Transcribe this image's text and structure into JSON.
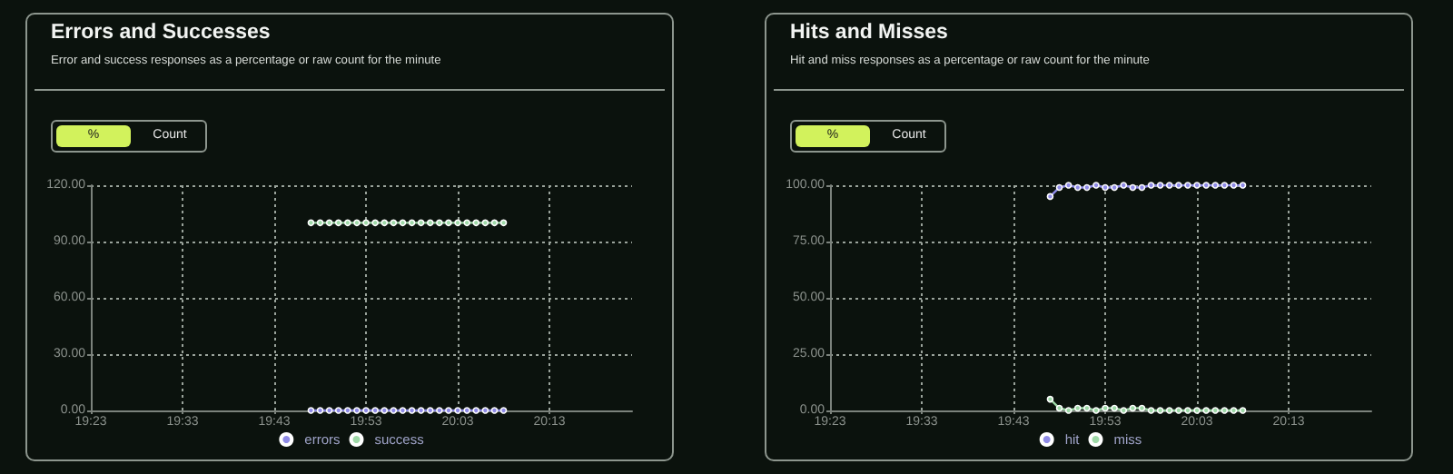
{
  "chart_data": [
    {
      "type": "line",
      "title": "Errors and Successes",
      "subtitle": "Error and success responses as a percentage or raw count for the minute",
      "annotations": [
        "%",
        "Count"
      ],
      "x": [
        19.7833,
        19.8,
        19.8167,
        19.8333,
        19.85,
        19.8667,
        19.8833,
        19.9,
        19.9167,
        19.9333,
        19.95,
        19.9667,
        19.9833,
        20,
        20.0167,
        20.0333,
        20.05,
        20.0667,
        20.0833,
        20.1,
        20.1167,
        20.1333
      ],
      "xlim": [
        19.3833,
        20.3667
      ],
      "xticks": [
        {
          "value": 19.3833,
          "label": "19:23"
        },
        {
          "value": 19.55,
          "label": "19:33"
        },
        {
          "value": 19.7167,
          "label": "19:43"
        },
        {
          "value": 19.8833,
          "label": "19:53"
        },
        {
          "value": 20.05,
          "label": "20:03"
        },
        {
          "value": 20.2167,
          "label": "20:13"
        }
      ],
      "ylim": [
        0,
        120
      ],
      "yticks": [
        {
          "value": 0,
          "label": "0.00"
        },
        {
          "value": 30,
          "label": "30.00"
        },
        {
          "value": 60,
          "label": "60.00"
        },
        {
          "value": 90,
          "label": "90.00"
        },
        {
          "value": 120,
          "label": "120.00"
        }
      ],
      "series": [
        {
          "name": "errors",
          "color": "#8f8be6",
          "values": [
            0,
            0,
            0,
            0,
            0,
            0,
            0,
            0,
            0,
            0,
            0,
            0,
            0,
            0,
            0,
            0,
            0,
            0,
            0,
            0,
            0,
            0
          ]
        },
        {
          "name": "success",
          "color": "#9fd9a8",
          "values": [
            100,
            100,
            100,
            100,
            100,
            100,
            100,
            100,
            100,
            100,
            100,
            100,
            100,
            100,
            100,
            100,
            100,
            100,
            100,
            100,
            100,
            100
          ]
        }
      ],
      "grid": true,
      "legend": "bottom",
      "marker": "circle",
      "line_style": "solid"
    },
    {
      "type": "line",
      "title": "Hits and Misses",
      "subtitle": "Hit and miss responses as a percentage or raw count for the minute",
      "annotations": [
        "%",
        "Count"
      ],
      "x": [
        19.7833,
        19.8,
        19.8167,
        19.8333,
        19.85,
        19.8667,
        19.8833,
        19.9,
        19.9167,
        19.9333,
        19.95,
        19.9667,
        19.9833,
        20,
        20.0167,
        20.0333,
        20.05,
        20.0667,
        20.0833,
        20.1,
        20.1167,
        20.1333
      ],
      "xlim": [
        19.3833,
        20.3667
      ],
      "xticks": [
        {
          "value": 19.3833,
          "label": "19:23"
        },
        {
          "value": 19.55,
          "label": "19:33"
        },
        {
          "value": 19.7167,
          "label": "19:43"
        },
        {
          "value": 19.8833,
          "label": "19:53"
        },
        {
          "value": 20.05,
          "label": "20:03"
        },
        {
          "value": 20.2167,
          "label": "20:13"
        }
      ],
      "ylim": [
        0,
        100
      ],
      "yticks": [
        {
          "value": 0,
          "label": "0.00"
        },
        {
          "value": 25,
          "label": "25.00"
        },
        {
          "value": 50,
          "label": "50.00"
        },
        {
          "value": 75,
          "label": "75.00"
        },
        {
          "value": 100,
          "label": "100.00"
        }
      ],
      "series": [
        {
          "name": "hit",
          "color": "#8f8be6",
          "values": [
            95,
            99,
            100,
            99,
            99,
            100,
            99,
            99,
            100,
            99,
            99,
            100,
            100,
            100,
            100,
            100,
            100,
            100,
            100,
            100,
            100,
            100
          ]
        },
        {
          "name": "miss",
          "color": "#9fd9a8",
          "values": [
            5,
            1,
            0,
            1,
            1,
            0,
            1,
            1,
            0,
            1,
            1,
            0,
            0,
            0,
            0,
            0,
            0,
            0,
            0,
            0,
            0,
            0
          ]
        }
      ],
      "grid": true,
      "legend": "bottom",
      "marker": "circle",
      "line_style": "solid"
    }
  ]
}
